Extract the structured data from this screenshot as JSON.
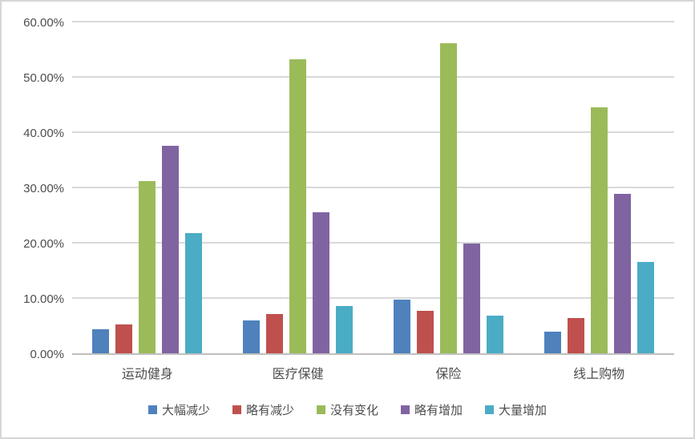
{
  "chart_data": {
    "type": "bar",
    "title": "",
    "xlabel": "",
    "ylabel": "",
    "categories": [
      "运动健身",
      "医疗保健",
      "保险",
      "线上购物"
    ],
    "series": [
      {
        "name": "大幅减少",
        "color": "#4f81bd",
        "values": [
          4.4,
          6.0,
          9.7,
          3.9
        ]
      },
      {
        "name": "略有减少",
        "color": "#c0504d",
        "values": [
          5.2,
          7.1,
          7.7,
          6.4
        ]
      },
      {
        "name": "没有变化",
        "color": "#9bbb59",
        "values": [
          31.2,
          53.2,
          56.1,
          44.5
        ]
      },
      {
        "name": "略有增加",
        "color": "#8064a2",
        "values": [
          37.6,
          25.5,
          19.9,
          28.9
        ]
      },
      {
        "name": "大量增加",
        "color": "#4bacc6",
        "values": [
          21.7,
          8.5,
          6.8,
          16.5
        ]
      }
    ],
    "ylim": [
      0,
      60
    ],
    "ytick_step": 10,
    "ytick_labels": [
      "0.00%",
      "10.00%",
      "20.00%",
      "30.00%",
      "40.00%",
      "50.00%",
      "60.00%"
    ],
    "grid": true,
    "legend_position": "bottom",
    "colors": {
      "gridline": "#d9d9d9",
      "axis_line": "#bfbfbf",
      "frame_border": "#d6d6d6",
      "label_text": "#4d4d4d",
      "background": "#ffffff"
    }
  }
}
